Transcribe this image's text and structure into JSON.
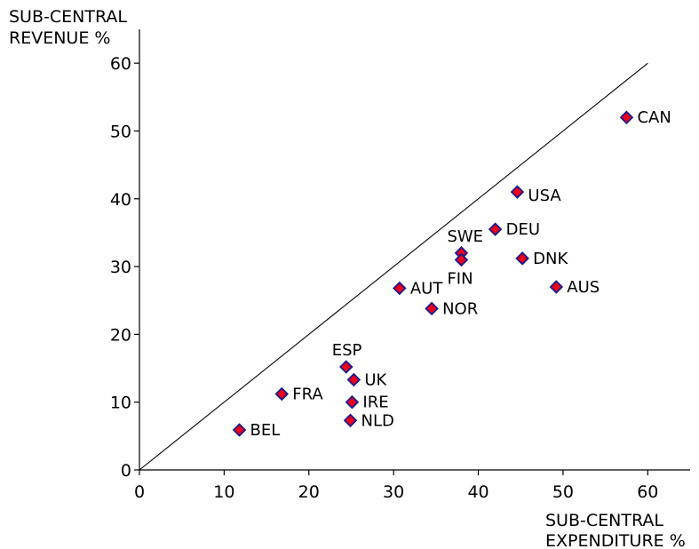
{
  "chart_data": {
    "type": "scatter",
    "title": "",
    "ylabel_lines": [
      "SUB-CENTRAL",
      "REVENUE %"
    ],
    "xlabel_lines": [
      "SUB-CENTRAL",
      "EXPENDITURE %"
    ],
    "xlim": [
      0,
      65
    ],
    "ylim": [
      0,
      65
    ],
    "xticks": [
      0,
      10,
      20,
      30,
      40,
      50,
      60
    ],
    "yticks": [
      0,
      10,
      20,
      30,
      40,
      50,
      60
    ],
    "grid": false,
    "reference_line": {
      "x": [
        0,
        60
      ],
      "y": [
        0,
        60
      ]
    },
    "marker": {
      "shape": "diamond",
      "fill": "#E8001C",
      "stroke": "#1A1A8C"
    },
    "points": [
      {
        "label": "CAN",
        "x": 57.5,
        "y": 52.0,
        "label_pos": "right"
      },
      {
        "label": "USA",
        "x": 44.6,
        "y": 41.0,
        "label_pos": "right-below"
      },
      {
        "label": "DEU",
        "x": 42.0,
        "y": 35.5,
        "label_pos": "right"
      },
      {
        "label": "SWE",
        "x": 38.0,
        "y": 32.0,
        "label_pos": "above"
      },
      {
        "label": "FIN",
        "x": 38.0,
        "y": 31.0,
        "label_pos": "below"
      },
      {
        "label": "DNK",
        "x": 45.2,
        "y": 31.2,
        "label_pos": "right"
      },
      {
        "label": "AUS",
        "x": 49.2,
        "y": 27.0,
        "label_pos": "right"
      },
      {
        "label": "AUT",
        "x": 30.7,
        "y": 26.8,
        "label_pos": "right"
      },
      {
        "label": "NOR",
        "x": 34.5,
        "y": 23.8,
        "label_pos": "right"
      },
      {
        "label": "ESP",
        "x": 24.4,
        "y": 15.2,
        "label_pos": "above"
      },
      {
        "label": "UK",
        "x": 25.3,
        "y": 13.3,
        "label_pos": "right"
      },
      {
        "label": "FRA",
        "x": 16.8,
        "y": 11.2,
        "label_pos": "right"
      },
      {
        "label": "IRE",
        "x": 25.1,
        "y": 10.0,
        "label_pos": "right"
      },
      {
        "label": "NLD",
        "x": 24.9,
        "y": 7.3,
        "label_pos": "right"
      },
      {
        "label": "BEL",
        "x": 11.8,
        "y": 5.9,
        "label_pos": "right"
      }
    ]
  }
}
